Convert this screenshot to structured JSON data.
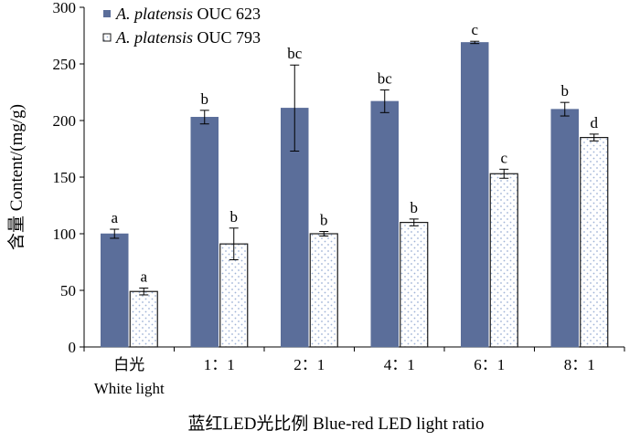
{
  "chart_data": {
    "type": "bar",
    "ylabel": "含量 Content/(mg/g)",
    "xlabel": "蓝红LED光比例 Blue-red LED light ratio",
    "ylim": [
      0,
      300
    ],
    "yticks": [
      0,
      50,
      100,
      150,
      200,
      250,
      300
    ],
    "categories": [
      {
        "line1": "白光",
        "line2": "White light"
      },
      {
        "line1": "1：1",
        "line2": ""
      },
      {
        "line1": "2：1",
        "line2": ""
      },
      {
        "line1": "4：1",
        "line2": ""
      },
      {
        "line1": "6：1",
        "line2": ""
      },
      {
        "line1": "8：1",
        "line2": ""
      }
    ],
    "series": [
      {
        "name_italic": "A. platensis",
        "name_rest": " OUC 623",
        "color": "#5b6e9a",
        "pattern": "solid",
        "values": [
          100,
          203,
          211,
          217,
          269,
          210
        ],
        "errors": [
          4,
          6,
          38,
          10,
          1,
          6
        ],
        "letters": [
          "a",
          "b",
          "bc",
          "bc",
          "c",
          "b"
        ]
      },
      {
        "name_italic": "A. platensis",
        "name_rest": " OUC 793",
        "color": "#9fb3d6",
        "pattern": "dots",
        "values": [
          49,
          91,
          100,
          110,
          153,
          185
        ],
        "errors": [
          3,
          14,
          2,
          3,
          4,
          3
        ],
        "letters": [
          "a",
          "b",
          "b",
          "b",
          "c",
          "d"
        ]
      }
    ],
    "legend_position": "top-left"
  }
}
